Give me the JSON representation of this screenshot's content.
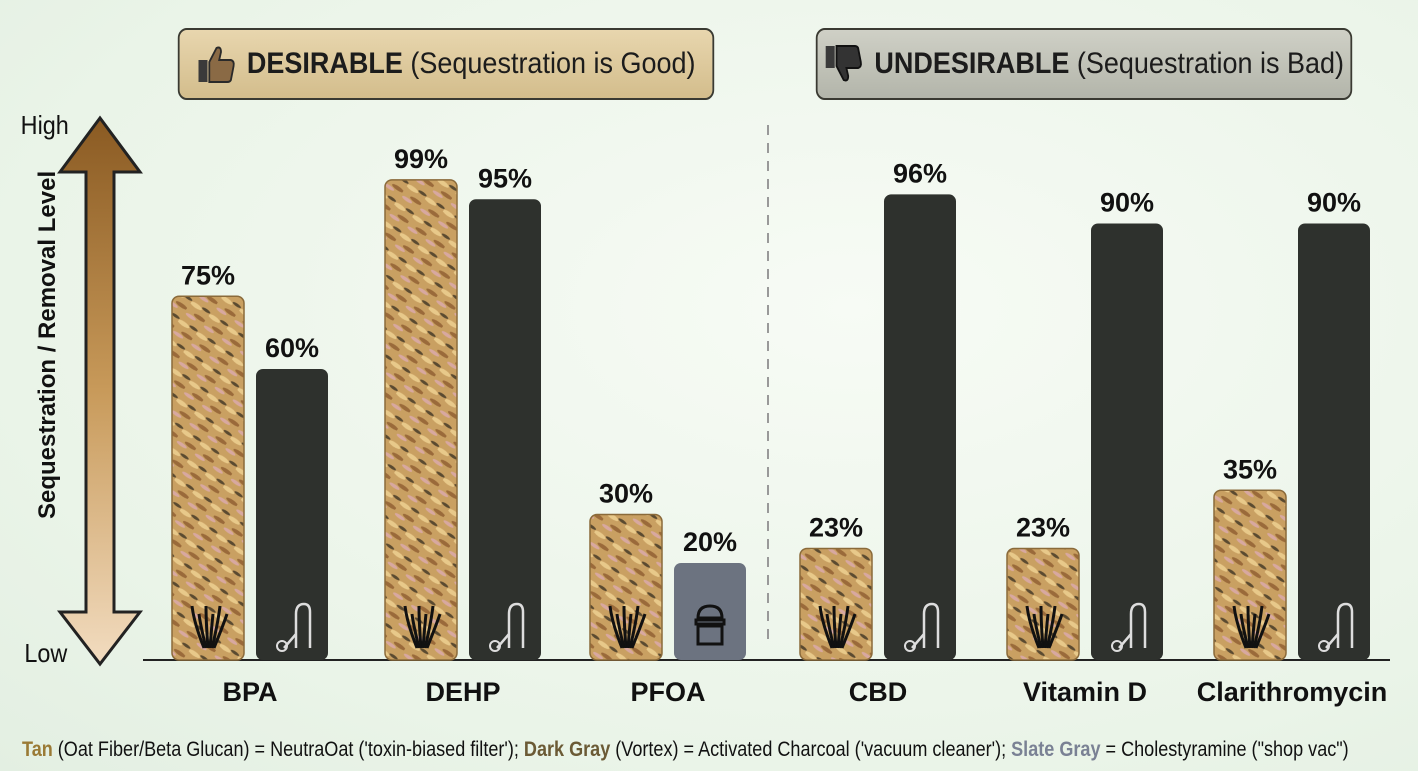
{
  "headers": {
    "desirable": {
      "bold": "DESIRABLE",
      "rest": "(Sequestration is Good)",
      "icon": "thumbs-up-icon"
    },
    "undesirable": {
      "bold": "UNDESIRABLE",
      "rest": "(Sequestration is Bad)",
      "icon": "thumbs-down-icon"
    }
  },
  "legend": {
    "tan_label": "Tan",
    "tan_text": " (Oat Fiber/Beta Glucan) = NeutraOat ('toxin-biased filter'); ",
    "dark_label": "Dark Gray",
    "dark_text": " (Vortex) = Activated Charcoal ('vacuum cleaner'); ",
    "slate_label": "Slate Gray",
    "slate_text": " = Cholestyramine (\"shop vac\")"
  },
  "colors": {
    "tan": "#c9a062",
    "dark": "#2e312d",
    "slate": "#6c7380"
  },
  "chart_data": {
    "type": "bar",
    "title": "",
    "ylabel": "Sequestration / Removal Level",
    "y_high_label": "High",
    "y_low_label": "Low",
    "ylim": [
      0,
      100
    ],
    "groups": [
      "Desirable",
      "Undesirable"
    ],
    "categories": [
      "BPA",
      "DEHP",
      "PFOA",
      "CBD",
      "Vitamin D",
      "Clarithromycin"
    ],
    "series": [
      {
        "name": "NeutraOat (Tan)",
        "values": [
          75,
          99,
          30,
          23,
          23,
          35
        ],
        "labels": [
          "75%",
          "99%",
          "30%",
          "23%",
          "23%",
          "35%"
        ]
      },
      {
        "name": "Activated Charcoal / Cholestyramine",
        "values": [
          60,
          95,
          20,
          96,
          90,
          90
        ],
        "labels": [
          "60%",
          "95%",
          "20%",
          "96%",
          "90%",
          "90%"
        ],
        "bar_types": [
          "dark",
          "dark",
          "slate",
          "dark",
          "dark",
          "dark"
        ]
      }
    ]
  }
}
